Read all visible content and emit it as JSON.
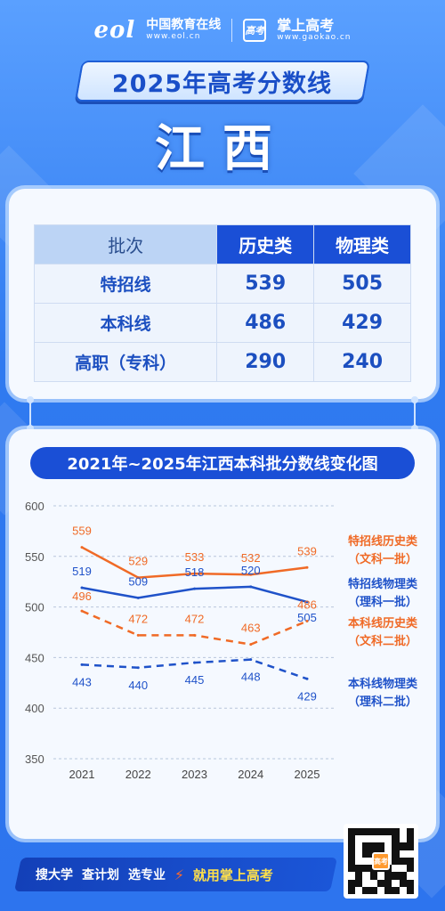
{
  "header": {
    "logo_mark": "eol",
    "eol_name": "中国教育在线",
    "eol_url": "www.eol.cn",
    "gk_badge": "高考",
    "gk_name": "掌上高考",
    "gk_url": "www.gaokao.cn"
  },
  "title": "2025年高考分数线",
  "province": "江西",
  "table": {
    "headers": [
      "批次",
      "历史类",
      "物理类"
    ],
    "rows": [
      {
        "label": "特招线",
        "history": "539",
        "physics": "505"
      },
      {
        "label": "本科线",
        "history": "486",
        "physics": "429"
      },
      {
        "label": "高职（专科）",
        "history": "290",
        "physics": "240"
      }
    ]
  },
  "chart_data": {
    "type": "line",
    "title": "2021年~2025年江西本科批分数线变化图",
    "categories": [
      "2021",
      "2022",
      "2023",
      "2024",
      "2025"
    ],
    "ylim": [
      350,
      600
    ],
    "yticks": [
      "600",
      "550",
      "500",
      "450",
      "400",
      "350"
    ],
    "grid": true,
    "legend_position": "right",
    "series": [
      {
        "name": "特招线历史类",
        "sub": "（文科一批）",
        "color": "#f06a26",
        "dashed": false,
        "values": [
          559,
          529,
          533,
          532,
          539
        ]
      },
      {
        "name": "特招线物理类",
        "sub": "（理科一批）",
        "color": "#1f52c9",
        "dashed": false,
        "values": [
          519,
          509,
          518,
          520,
          505
        ]
      },
      {
        "name": "本科线历史类",
        "sub": "（文科二批）",
        "color": "#f06a26",
        "dashed": true,
        "values": [
          496,
          472,
          472,
          463,
          486
        ]
      },
      {
        "name": "本科线物理类",
        "sub": "（理科二批）",
        "color": "#1f52c9",
        "dashed": true,
        "values": [
          443,
          440,
          445,
          448,
          429
        ]
      }
    ]
  },
  "footer": {
    "items": [
      "搜大学",
      "查计划",
      "选专业"
    ],
    "cta": "就用掌上高考",
    "qr_logo": "高考"
  }
}
